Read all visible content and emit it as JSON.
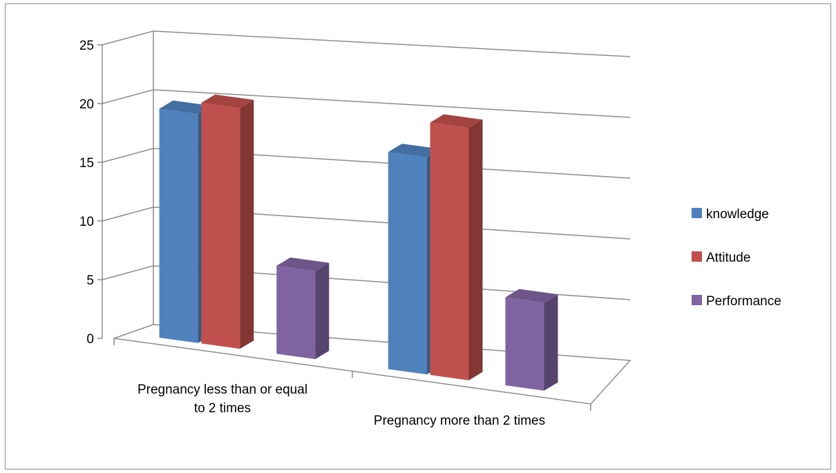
{
  "chart_data": {
    "type": "bar",
    "title": "",
    "xlabel": "",
    "ylabel": "",
    "ylim": [
      0,
      25
    ],
    "yticks": [
      0,
      5,
      10,
      15,
      20,
      25
    ],
    "grid": true,
    "legend_position": "right",
    "categories": [
      [
        "Pregnancy less than or equal",
        "to 2 times"
      ],
      [
        "Pregnancy more than 2 times"
      ]
    ],
    "series": [
      {
        "name": "knowledge",
        "values": [
          19.5,
          18.5
        ],
        "color": "#4F81BD"
      },
      {
        "name": "Attitude",
        "values": [
          20.5,
          21.5
        ],
        "color": "#C0504D"
      },
      {
        "name": "Performance",
        "values": [
          7.5,
          7.5
        ],
        "color": "#8064A2"
      }
    ]
  }
}
